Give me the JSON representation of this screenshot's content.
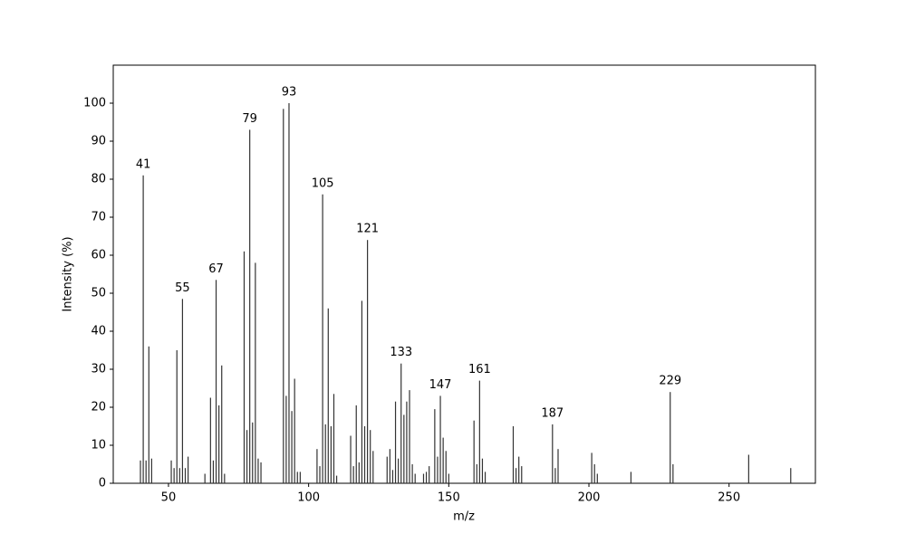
{
  "chart_data": {
    "type": "bar",
    "xlabel": "m/z",
    "ylabel": "Intensity (%)",
    "color": "#333333",
    "x": [
      40,
      41,
      42,
      43,
      44,
      51,
      52,
      53,
      54,
      55,
      56,
      57,
      63,
      65,
      66,
      67,
      68,
      69,
      70,
      77,
      78,
      79,
      80,
      81,
      82,
      83,
      91,
      92,
      93,
      94,
      95,
      96,
      97,
      103,
      104,
      105,
      106,
      107,
      108,
      109,
      110,
      115,
      116,
      117,
      118,
      119,
      120,
      121,
      122,
      123,
      128,
      129,
      130,
      131,
      132,
      133,
      134,
      135,
      136,
      137,
      138,
      141,
      142,
      143,
      145,
      146,
      147,
      148,
      149,
      150,
      159,
      160,
      161,
      162,
      163,
      173,
      174,
      175,
      176,
      187,
      188,
      189,
      201,
      202,
      203,
      215,
      229,
      230,
      257,
      272
    ],
    "values": [
      6,
      81,
      6,
      36,
      6.5,
      6,
      4,
      35,
      4,
      48.5,
      4,
      7,
      2.5,
      22.5,
      6,
      53.5,
      20.5,
      31,
      2.5,
      61,
      14,
      93,
      16,
      58,
      6.5,
      5.5,
      98.5,
      23,
      100,
      19,
      27.5,
      3,
      3,
      9,
      4.5,
      76,
      15.5,
      46,
      15,
      23.5,
      2,
      12.5,
      4.5,
      20.5,
      5.5,
      48,
      15,
      64,
      14,
      8.5,
      7,
      9,
      3.5,
      21.5,
      6.5,
      31.5,
      18,
      21.5,
      24.5,
      5,
      2.5,
      2.5,
      3,
      4.5,
      19.5,
      7,
      23,
      12,
      8.5,
      2.5,
      16.5,
      5,
      27,
      6.5,
      3,
      15,
      4,
      7,
      4.5,
      15.5,
      4,
      9,
      8,
      5,
      2.5,
      3,
      24,
      5,
      7.5,
      4
    ],
    "peak_labels": [
      41,
      55,
      67,
      79,
      93,
      105,
      121,
      133,
      147,
      161,
      187,
      229
    ],
    "xlim": [
      30.3,
      280.8
    ],
    "ylim": [
      0,
      110
    ],
    "xticks": [
      50,
      100,
      150,
      200,
      250
    ],
    "yticks": [
      0,
      10,
      20,
      30,
      40,
      50,
      60,
      70,
      80,
      90,
      100
    ]
  }
}
